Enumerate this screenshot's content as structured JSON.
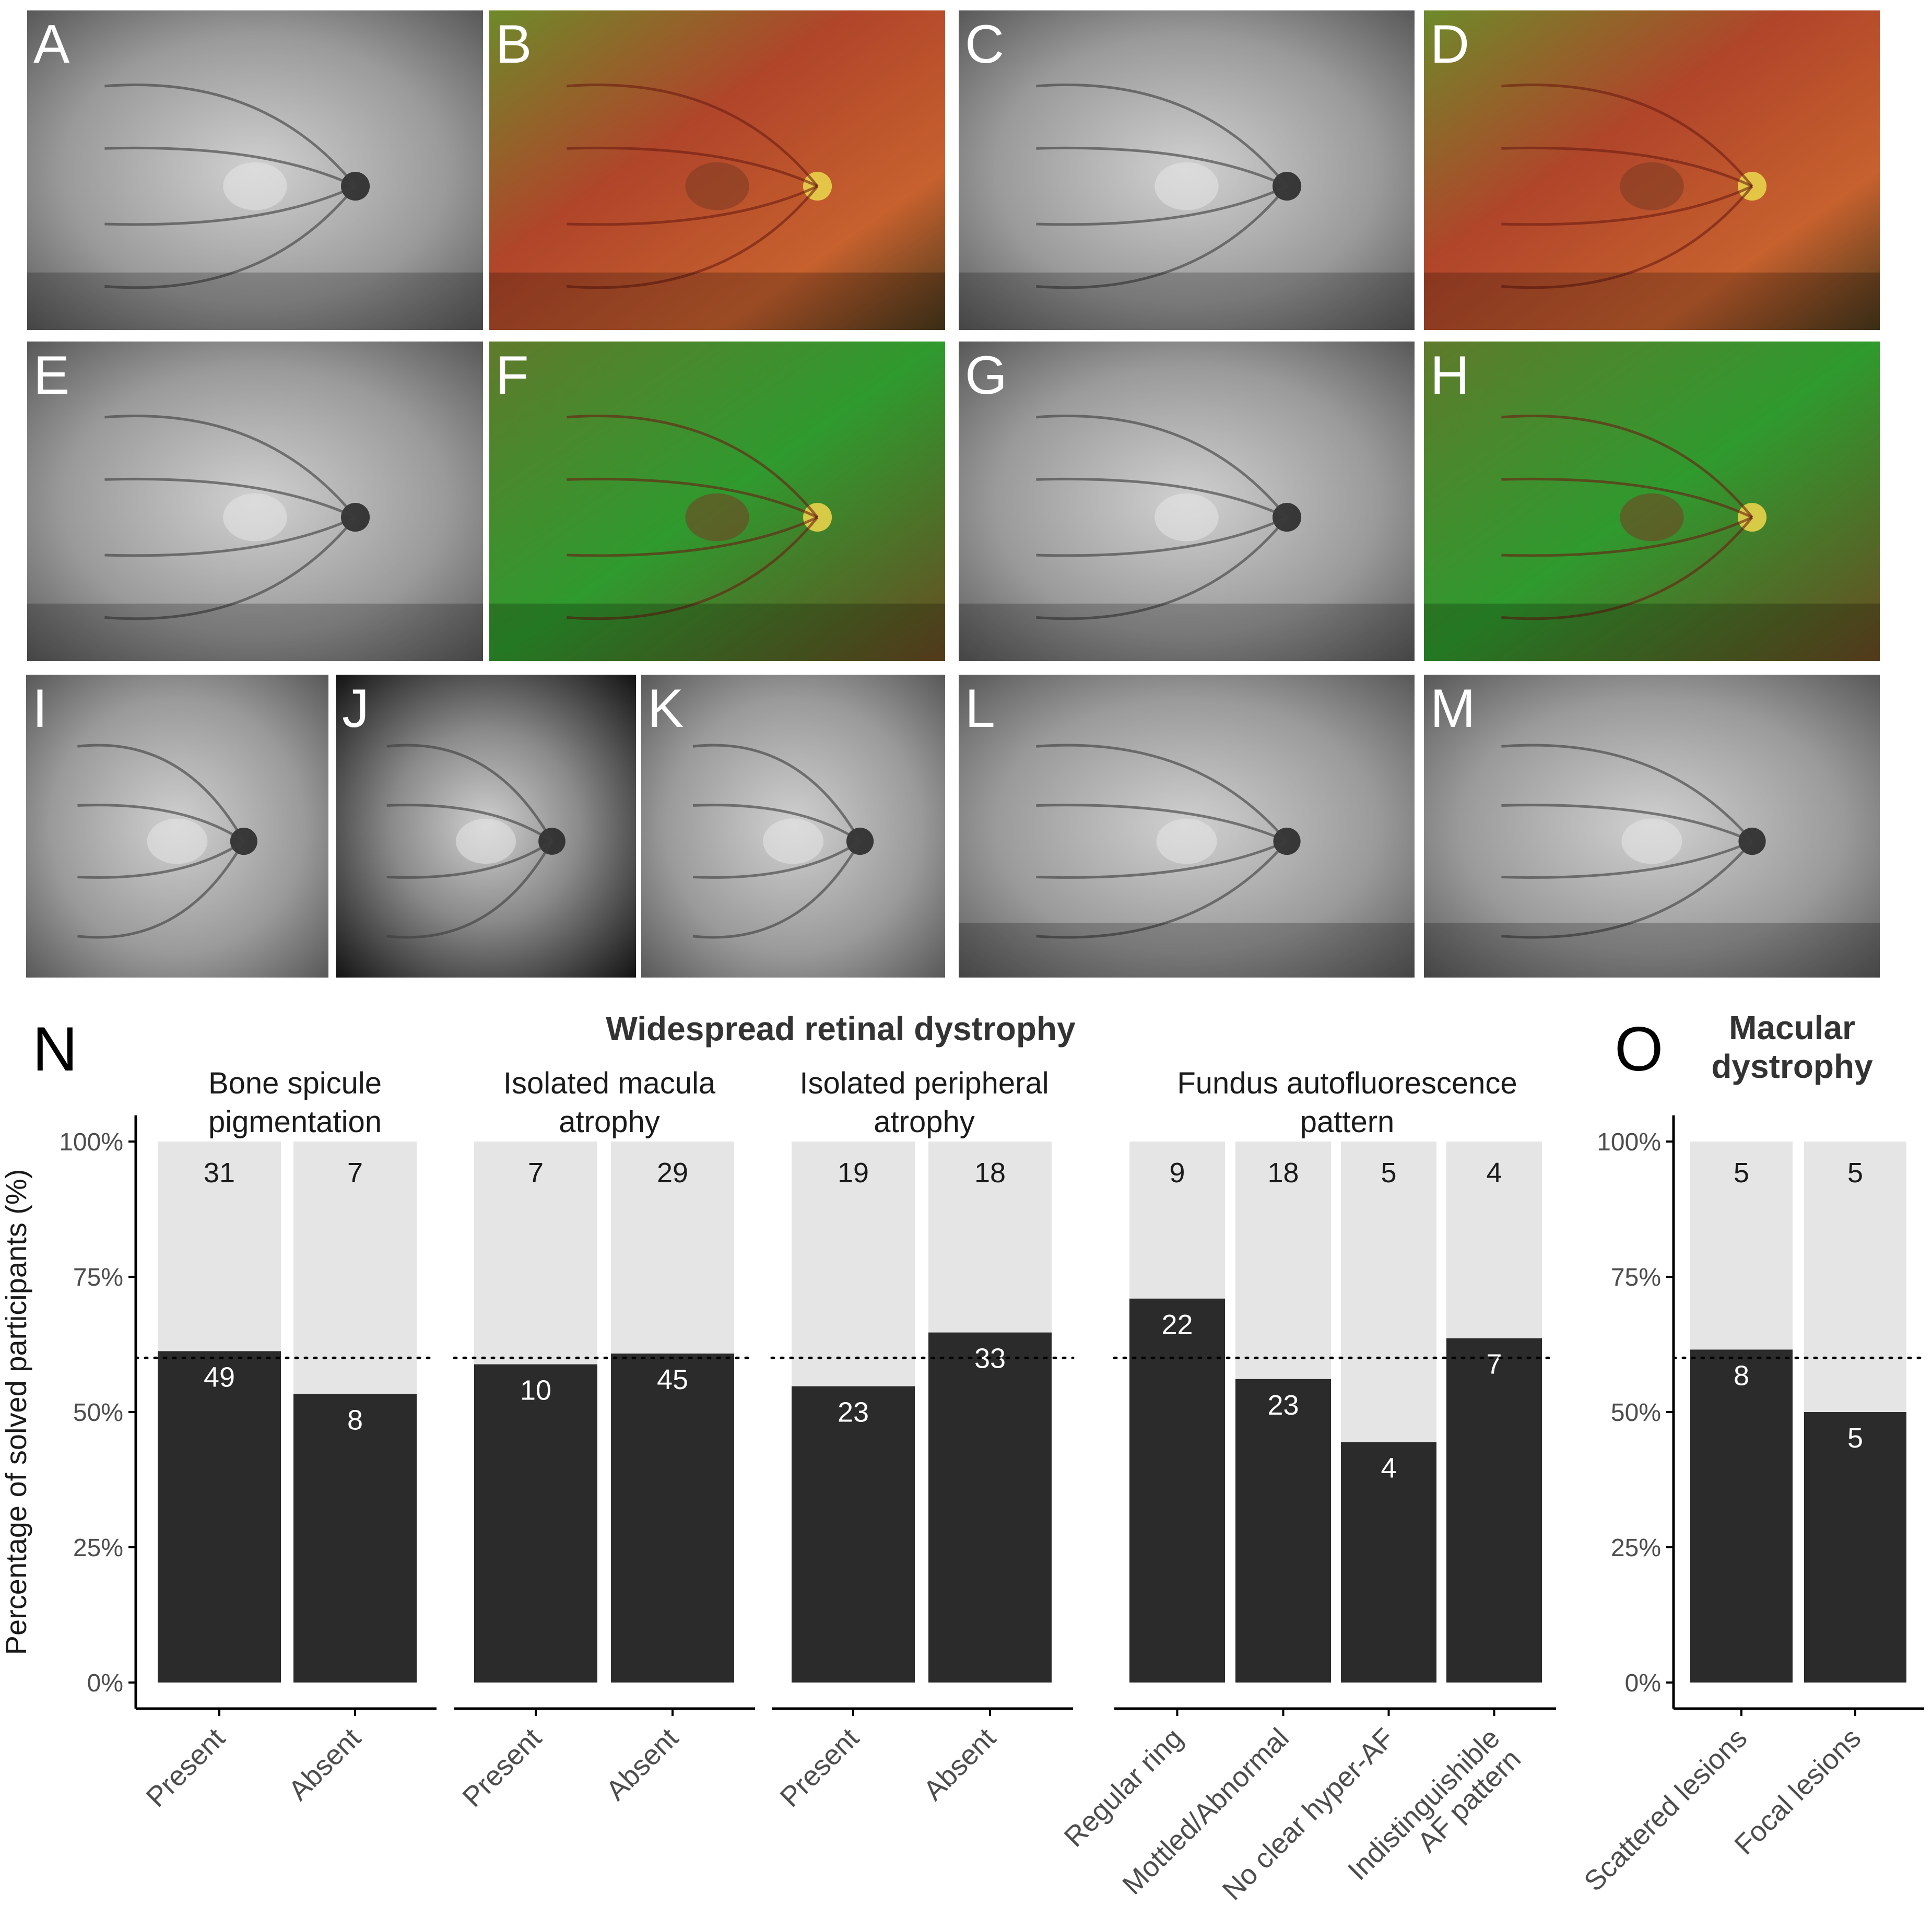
{
  "panels": [
    {
      "letter": "A",
      "modality": "fundus-autofluorescence",
      "tone": "gray"
    },
    {
      "letter": "B",
      "modality": "pseudocolor-fundus",
      "tone": "color"
    },
    {
      "letter": "C",
      "modality": "fundus-autofluorescence",
      "tone": "gray"
    },
    {
      "letter": "D",
      "modality": "pseudocolor-fundus",
      "tone": "color"
    },
    {
      "letter": "E",
      "modality": "fundus-autofluorescence",
      "tone": "gray"
    },
    {
      "letter": "F",
      "modality": "pseudocolor-fundus",
      "tone": "color-green"
    },
    {
      "letter": "G",
      "modality": "fundus-autofluorescence",
      "tone": "gray"
    },
    {
      "letter": "H",
      "modality": "pseudocolor-fundus",
      "tone": "color-green"
    },
    {
      "letter": "I",
      "modality": "fundus-autofluorescence",
      "tone": "gray"
    },
    {
      "letter": "J",
      "modality": "fundus-autofluorescence",
      "tone": "gray-dark"
    },
    {
      "letter": "K",
      "modality": "fundus-autofluorescence",
      "tone": "gray"
    },
    {
      "letter": "L",
      "modality": "fundus-autofluorescence",
      "tone": "gray"
    },
    {
      "letter": "M",
      "modality": "fundus-autofluorescence",
      "tone": "gray"
    }
  ],
  "colors": {
    "solved_bar": "#2b2b2b",
    "unsolved_bar": "#e5e5e5",
    "text": "#1a1a1a",
    "axis": "#000000",
    "reference_line": "#000000"
  },
  "chart_data": [
    {
      "type": "bar",
      "panel": "N",
      "title": "Widespread retinal dystrophy",
      "ylabel": "Percentage of solved participants (%)",
      "yticks": [
        "0%",
        "25%",
        "50%",
        "75%",
        "100%"
      ],
      "ylim": [
        0,
        1
      ],
      "reference_line": 0.6,
      "stacked": true,
      "groups": [
        {
          "title": "Bone spicule pigmentation",
          "categories": [
            "Present",
            "Absent"
          ],
          "solved": [
            49,
            8
          ],
          "unsolved": [
            31,
            7
          ]
        },
        {
          "title": "Isolated macula atrophy",
          "categories": [
            "Present",
            "Absent"
          ],
          "solved": [
            10,
            45
          ],
          "unsolved": [
            7,
            29
          ]
        },
        {
          "title": "Isolated peripheral atrophy",
          "categories": [
            "Present",
            "Absent"
          ],
          "solved": [
            23,
            33
          ],
          "unsolved": [
            19,
            18
          ]
        },
        {
          "title": "Fundus autofluorescence pattern",
          "categories": [
            "Regular ring",
            "Mottled/Abnormal",
            "No clear hyper-AF",
            "Indistinguishible AF pattern"
          ],
          "solved": [
            22,
            23,
            4,
            7
          ],
          "unsolved": [
            9,
            18,
            5,
            4
          ]
        }
      ]
    },
    {
      "type": "bar",
      "panel": "O",
      "title": "Macular dystrophy",
      "ylabel": "",
      "yticks": [
        "0%",
        "25%",
        "50%",
        "75%",
        "100%"
      ],
      "ylim": [
        0,
        1
      ],
      "reference_line": 0.6,
      "stacked": true,
      "groups": [
        {
          "title": "",
          "categories": [
            "Scattered lesions",
            "Focal lesions"
          ],
          "solved": [
            8,
            5
          ],
          "unsolved": [
            5,
            5
          ]
        }
      ]
    }
  ]
}
